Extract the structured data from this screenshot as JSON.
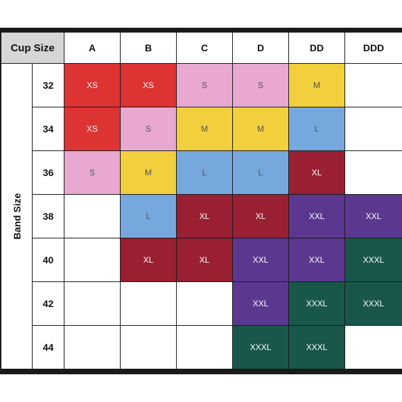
{
  "header": {
    "cup_size": "Cup Size",
    "band_size": "Band Size"
  },
  "cups": [
    "A",
    "B",
    "C",
    "D",
    "DD",
    "DDD"
  ],
  "bands": [
    "32",
    "34",
    "36",
    "38",
    "40",
    "42",
    "44"
  ],
  "size_colors": {
    "XS": "#dd3333",
    "S": "#e8a8d0",
    "M": "#f2cf3c",
    "L": "#76a7dd",
    "XL": "#9a1f32",
    "XXL": "#5b3790",
    "XXXL": "#19574a"
  },
  "grid": [
    [
      "XS",
      "XS",
      "S",
      "S",
      "M",
      ""
    ],
    [
      "XS",
      "S",
      "M",
      "M",
      "L",
      ""
    ],
    [
      "S",
      "M",
      "L",
      "L",
      "XL",
      ""
    ],
    [
      "",
      "L",
      "XL",
      "XL",
      "XXL",
      "XXL"
    ],
    [
      "",
      "XL",
      "XL",
      "XXL",
      "XXL",
      "XXXL"
    ],
    [
      "",
      "",
      "",
      "XXL",
      "XXXL",
      "XXXL"
    ],
    [
      "",
      "",
      "",
      "XXXL",
      "XXXL",
      ""
    ]
  ]
}
